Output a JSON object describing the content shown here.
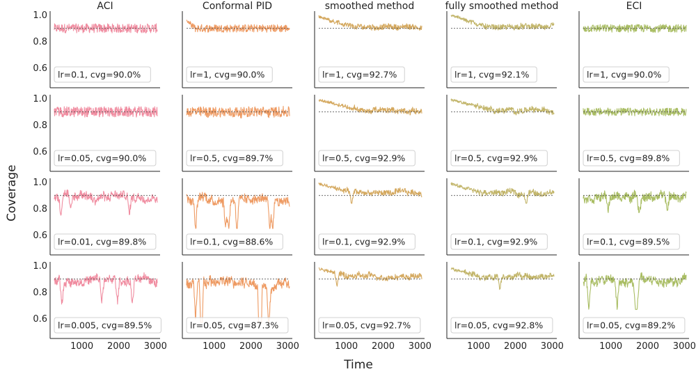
{
  "figure": {
    "ylabel": "Coverage",
    "xlabel": "Time"
  },
  "chart_data": {
    "type": "line",
    "layout": "grid",
    "columns": [
      "ACI",
      "Conformal PID",
      "smoothed method",
      "fully smoothed method",
      "ECI"
    ],
    "colors": [
      "#f08ca0",
      "#ee9a62",
      "#d4a85e",
      "#c2b56a",
      "#a9bd63"
    ],
    "reference_line": {
      "y": 0.9,
      "style": "dotted",
      "color": "#555555"
    },
    "x_ticks": [
      1000,
      2000,
      3000
    ],
    "y_ticks": [
      0.6,
      0.8,
      1.0
    ],
    "xlim": [
      250,
      3050
    ],
    "ylim": [
      0.45,
      1.03
    ],
    "grid": false,
    "rows": [
      [
        "lr=0.1, cvg=90.0%",
        "lr=1, cvg=90.0%",
        "lr=1, cvg=92.7%",
        "lr=1, cvg=92.1%",
        "lr=1, cvg=90.0%"
      ],
      [
        "lr=0.05, cvg=90.0%",
        "lr=0.5, cvg=89.7%",
        "lr=0.5, cvg=92.9%",
        "lr=0.5, cvg=92.9%",
        "lr=0.5, cvg=89.8%"
      ],
      [
        "lr=0.01, cvg=89.8%",
        "lr=0.1, cvg=88.6%",
        "lr=0.1, cvg=92.9%",
        "lr=0.1, cvg=92.9%",
        "lr=0.1, cvg=89.5%"
      ],
      [
        "lr=0.005, cvg=89.5%",
        "lr=0.05, cvg=87.3%",
        "lr=0.05, cvg=92.7%",
        "lr=0.05, cvg=92.8%",
        "lr=0.05, cvg=89.2%"
      ]
    ],
    "series_shape": [
      [
        {
          "base": 0.9,
          "amp": 0.035,
          "walk": 0.0,
          "drops": 0,
          "minv": 0.84,
          "start": 0.92,
          "decay": 0
        },
        {
          "base": 0.9,
          "amp": 0.03,
          "walk": 0.0,
          "drops": 0,
          "minv": 0.86,
          "start": 0.96,
          "decay": 200
        },
        {
          "base": 0.91,
          "amp": 0.02,
          "walk": 0.02,
          "drops": 0,
          "minv": 0.87,
          "start": 0.99,
          "decay": 900
        },
        {
          "base": 0.91,
          "amp": 0.02,
          "walk": 0.02,
          "drops": 0,
          "minv": 0.86,
          "start": 1.0,
          "decay": 1000
        },
        {
          "base": 0.9,
          "amp": 0.03,
          "walk": 0.0,
          "drops": 0,
          "minv": 0.85,
          "start": 0.93,
          "decay": 0
        }
      ],
      [
        {
          "base": 0.9,
          "amp": 0.04,
          "walk": 0.0,
          "drops": 0,
          "minv": 0.83,
          "start": 0.9,
          "decay": 0
        },
        {
          "base": 0.9,
          "amp": 0.04,
          "walk": 0.01,
          "drops": 0,
          "minv": 0.85,
          "start": 0.9,
          "decay": 0
        },
        {
          "base": 0.91,
          "amp": 0.02,
          "walk": 0.025,
          "drops": 0,
          "minv": 0.86,
          "start": 0.99,
          "decay": 1200
        },
        {
          "base": 0.91,
          "amp": 0.02,
          "walk": 0.025,
          "drops": 0,
          "minv": 0.86,
          "start": 0.99,
          "decay": 1200
        },
        {
          "base": 0.9,
          "amp": 0.03,
          "walk": 0.0,
          "drops": 0,
          "minv": 0.85,
          "start": 0.9,
          "decay": 0
        }
      ],
      [
        {
          "base": 0.89,
          "amp": 0.03,
          "walk": 0.04,
          "drops": 3,
          "minv": 0.75,
          "start": 0.97,
          "decay": 0
        },
        {
          "base": 0.88,
          "amp": 0.03,
          "walk": 0.06,
          "drops": 6,
          "minv": 0.65,
          "start": 0.94,
          "decay": 0
        },
        {
          "base": 0.92,
          "amp": 0.02,
          "walk": 0.03,
          "drops": 1,
          "minv": 0.82,
          "start": 0.99,
          "decay": 800
        },
        {
          "base": 0.92,
          "amp": 0.02,
          "walk": 0.03,
          "drops": 1,
          "minv": 0.84,
          "start": 0.99,
          "decay": 800
        },
        {
          "base": 0.89,
          "amp": 0.03,
          "walk": 0.04,
          "drops": 3,
          "minv": 0.77,
          "start": 0.97,
          "decay": 0
        }
      ],
      [
        {
          "base": 0.89,
          "amp": 0.03,
          "walk": 0.05,
          "drops": 4,
          "minv": 0.71,
          "start": 0.96,
          "decay": 0
        },
        {
          "base": 0.87,
          "amp": 0.03,
          "walk": 0.07,
          "drops": 7,
          "minv": 0.57,
          "start": 0.9,
          "decay": 0
        },
        {
          "base": 0.92,
          "amp": 0.02,
          "walk": 0.03,
          "drops": 1,
          "minv": 0.82,
          "start": 0.98,
          "decay": 700
        },
        {
          "base": 0.92,
          "amp": 0.02,
          "walk": 0.03,
          "drops": 1,
          "minv": 0.82,
          "start": 0.98,
          "decay": 700
        },
        {
          "base": 0.89,
          "amp": 0.03,
          "walk": 0.05,
          "drops": 4,
          "minv": 0.67,
          "start": 0.96,
          "decay": 0
        }
      ]
    ]
  }
}
